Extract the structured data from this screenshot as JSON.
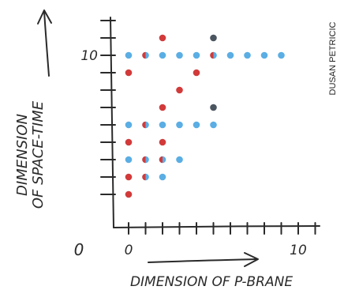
{
  "credit": "DUSAN PETRICIC",
  "chart_data": {
    "type": "scatter",
    "title": "",
    "xlabel": "DIMENSION OF P-BRANE",
    "ylabel_line1": "DIMENSION",
    "ylabel_line2": "OF SPACE-TIME",
    "origin_label": "0",
    "x_tick_labels": [
      {
        "value": 0,
        "label": "0"
      },
      {
        "value": 10,
        "label": "10"
      }
    ],
    "y_tick_labels": [
      {
        "value": 10,
        "label": "10"
      }
    ],
    "xlim": [
      0,
      11
    ],
    "ylim": [
      1,
      12
    ],
    "x_ticks": [
      0,
      1,
      2,
      3,
      4,
      5,
      6,
      7,
      8,
      9,
      10,
      11
    ],
    "y_ticks": [
      2,
      3,
      4,
      5,
      6,
      7,
      8,
      9,
      10,
      11,
      12
    ],
    "grid": false,
    "legend": "none",
    "colors": {
      "red": "#d23a3a",
      "blue": "#5aaee4",
      "gray": "#4a5560",
      "ink": "#2a2a2a"
    },
    "series": [
      {
        "color": "red",
        "points": [
          [
            0,
            2
          ],
          [
            0,
            3
          ],
          [
            0,
            5
          ],
          [
            0,
            9
          ],
          [
            1,
            3
          ],
          [
            1,
            4
          ],
          [
            1,
            6
          ],
          [
            1,
            10
          ],
          [
            2,
            4
          ],
          [
            2,
            5
          ],
          [
            2,
            7
          ],
          [
            2,
            11
          ],
          [
            3,
            8
          ],
          [
            4,
            9
          ],
          [
            5,
            10
          ]
        ]
      },
      {
        "color": "blue",
        "points": [
          [
            0,
            4
          ],
          [
            0,
            6
          ],
          [
            0,
            10
          ],
          [
            1,
            3
          ],
          [
            1,
            4
          ],
          [
            1,
            6
          ],
          [
            1,
            10
          ],
          [
            2,
            3
          ],
          [
            2,
            4
          ],
          [
            2,
            6
          ],
          [
            2,
            10
          ],
          [
            3,
            4
          ],
          [
            3,
            6
          ],
          [
            3,
            10
          ],
          [
            4,
            6
          ],
          [
            4,
            10
          ],
          [
            5,
            6
          ],
          [
            5,
            10
          ],
          [
            6,
            10
          ],
          [
            7,
            10
          ],
          [
            8,
            10
          ],
          [
            9,
            10
          ]
        ]
      },
      {
        "color": "gray",
        "points": [
          [
            5,
            7
          ],
          [
            5,
            11
          ]
        ]
      }
    ]
  }
}
